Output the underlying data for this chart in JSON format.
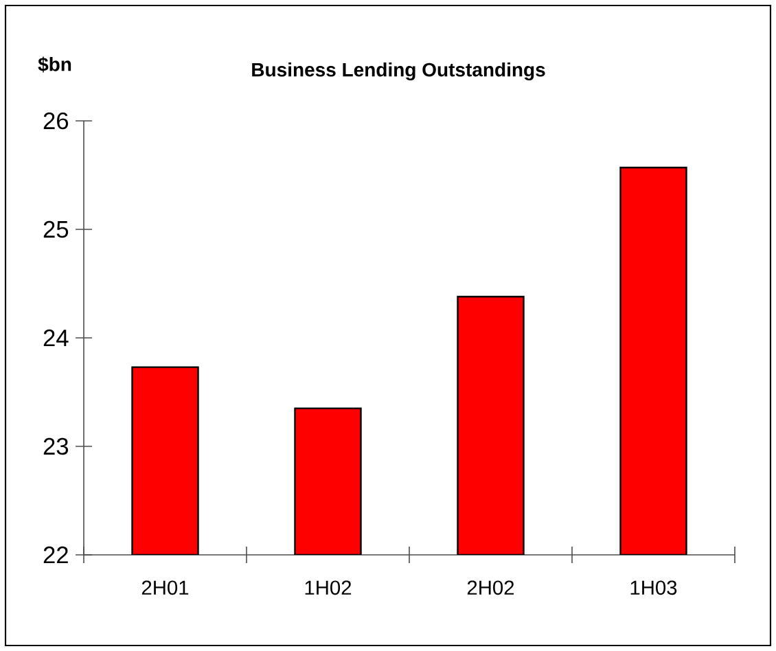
{
  "chart_data": {
    "type": "bar",
    "title": "Business Lending Outstandings",
    "ylabel": "$bn",
    "categories": [
      "2H01",
      "1H02",
      "2H02",
      "1H03"
    ],
    "values": [
      23.73,
      23.35,
      24.38,
      25.57
    ],
    "color": "#ff0000",
    "ylim": [
      22,
      26
    ],
    "yticks": [
      22,
      23,
      24,
      25,
      26
    ],
    "grid": false
  }
}
